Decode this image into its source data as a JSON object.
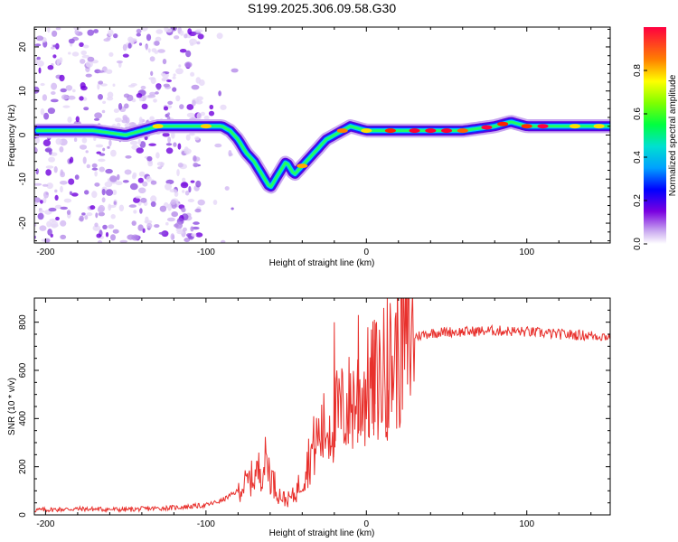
{
  "title": "S199.2025.306.09.58.G30",
  "chart_data": [
    {
      "type": "heatmap",
      "xlabel": "Height of straight line (km)",
      "ylabel": "Frequency (Hz)",
      "xlim": [
        -207,
        152
      ],
      "ylim": [
        -24.5,
        24.5
      ],
      "xticks": [
        -200,
        -100,
        0,
        100
      ],
      "yticks": [
        -20,
        -10,
        0,
        10,
        20
      ],
      "ridge": {
        "x": [
          -200,
          -170,
          -150,
          -140,
          -130,
          -110,
          -100,
          -90,
          -85,
          -80,
          -75,
          -70,
          -65,
          -60,
          -55,
          -50,
          -45,
          -40,
          -35,
          -30,
          -25,
          -20,
          -15,
          -10,
          0,
          20,
          40,
          60,
          80,
          90,
          100,
          120,
          150
        ],
        "freq": [
          1,
          1,
          0,
          1,
          2,
          2,
          2,
          2,
          1,
          -1,
          -4,
          -6,
          -9,
          -12,
          -9,
          -6,
          -9,
          -7,
          -5,
          -3,
          -1,
          0,
          1,
          2,
          1,
          1,
          1,
          1,
          2,
          3,
          2,
          2,
          2
        ]
      },
      "colorbar": {
        "label": "Normalized spectral amplitude",
        "range": [
          0,
          1
        ],
        "ticks": [
          "0.0",
          "0.2",
          "0.4",
          "0.6",
          "0.8"
        ]
      }
    },
    {
      "type": "line",
      "xlabel": "Height of straight line (km)",
      "ylabel": "SNR (10 * v/v)",
      "xlim": [
        -207,
        152
      ],
      "ylim": [
        0,
        900
      ],
      "xticks": [
        -200,
        -100,
        0,
        100
      ],
      "yticks": [
        0,
        200,
        400,
        600,
        800
      ],
      "series": [
        {
          "name": "SNR",
          "color": "#e8302c",
          "x": [
            -207,
            -180,
            -150,
            -120,
            -100,
            -90,
            -85,
            -80,
            -75,
            -70,
            -65,
            -62,
            -60,
            -55,
            -50,
            -45,
            -40,
            -35,
            -30,
            -25,
            -20,
            -15,
            -10,
            -5,
            0,
            5,
            10,
            15,
            20,
            25,
            30,
            40,
            50,
            60,
            80,
            100,
            120,
            140,
            152
          ],
          "values": [
            20,
            25,
            22,
            30,
            40,
            60,
            80,
            100,
            130,
            160,
            200,
            230,
            170,
            90,
            60,
            80,
            150,
            250,
            320,
            360,
            400,
            430,
            460,
            500,
            520,
            550,
            580,
            620,
            680,
            720,
            740,
            755,
            760,
            760,
            765,
            760,
            750,
            745,
            740
          ]
        }
      ],
      "spikes": [
        {
          "x": -20,
          "value": 800
        },
        {
          "x": -5,
          "value": 830
        },
        {
          "x": 5,
          "value": 810
        },
        {
          "x": 13,
          "value": 900
        }
      ]
    }
  ]
}
